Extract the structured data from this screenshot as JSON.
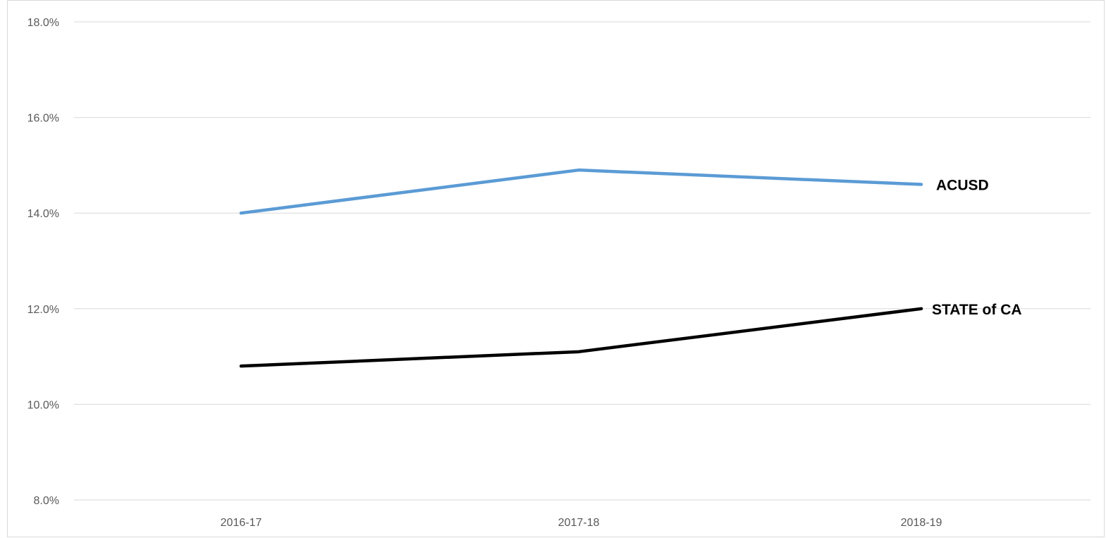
{
  "chart_data": {
    "type": "line",
    "title": "",
    "xlabel": "",
    "ylabel": "",
    "categories": [
      "2016-17",
      "2017-18",
      "2018-19"
    ],
    "y_ticks": [
      "8.0%",
      "10.0%",
      "12.0%",
      "14.0%",
      "16.0%",
      "18.0%"
    ],
    "ylim": [
      8,
      18
    ],
    "grid": true,
    "legend": "none (labels at line ends)",
    "series": [
      {
        "name": "ACUSD",
        "values": [
          14.0,
          14.9,
          14.6
        ],
        "color": "#5b9bd5"
      },
      {
        "name": "STATE of CA",
        "values": [
          10.8,
          11.1,
          12.0
        ],
        "color": "#000000"
      }
    ]
  }
}
